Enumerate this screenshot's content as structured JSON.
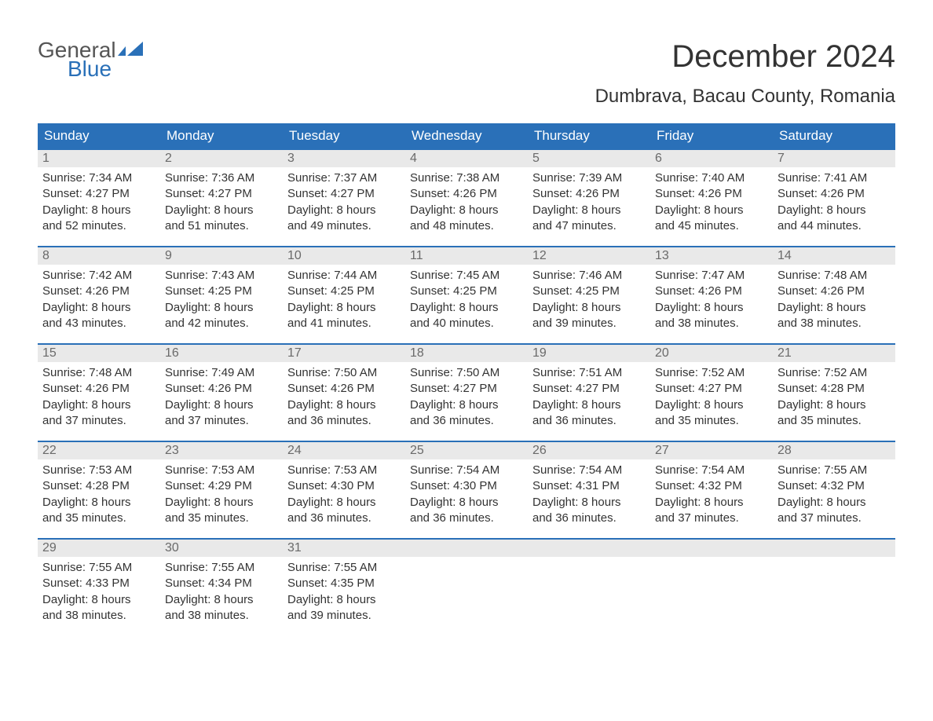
{
  "brand": {
    "text_general": "General",
    "text_blue": "Blue",
    "flag_color": "#2A70B8"
  },
  "title": {
    "month_year": "December 2024",
    "location": "Dumbrava, Bacau County, Romania"
  },
  "colors": {
    "header_bg": "#2A70B8",
    "header_text": "#ffffff",
    "daynum_bg": "#e9e9e9",
    "daynum_text": "#6a6a6a",
    "body_text": "#333333",
    "page_bg": "#ffffff",
    "row_border": "#2A70B8"
  },
  "typography": {
    "month_title_size_pt": 30,
    "location_size_pt": 18,
    "day_header_size_pt": 13,
    "body_size_pt": 11
  },
  "calendar": {
    "type": "table",
    "day_headers": [
      "Sunday",
      "Monday",
      "Tuesday",
      "Wednesday",
      "Thursday",
      "Friday",
      "Saturday"
    ],
    "weeks": [
      [
        {
          "day": "1",
          "sunrise": "Sunrise: 7:34 AM",
          "sunset": "Sunset: 4:27 PM",
          "daylight1": "Daylight: 8 hours",
          "daylight2": "and 52 minutes."
        },
        {
          "day": "2",
          "sunrise": "Sunrise: 7:36 AM",
          "sunset": "Sunset: 4:27 PM",
          "daylight1": "Daylight: 8 hours",
          "daylight2": "and 51 minutes."
        },
        {
          "day": "3",
          "sunrise": "Sunrise: 7:37 AM",
          "sunset": "Sunset: 4:27 PM",
          "daylight1": "Daylight: 8 hours",
          "daylight2": "and 49 minutes."
        },
        {
          "day": "4",
          "sunrise": "Sunrise: 7:38 AM",
          "sunset": "Sunset: 4:26 PM",
          "daylight1": "Daylight: 8 hours",
          "daylight2": "and 48 minutes."
        },
        {
          "day": "5",
          "sunrise": "Sunrise: 7:39 AM",
          "sunset": "Sunset: 4:26 PM",
          "daylight1": "Daylight: 8 hours",
          "daylight2": "and 47 minutes."
        },
        {
          "day": "6",
          "sunrise": "Sunrise: 7:40 AM",
          "sunset": "Sunset: 4:26 PM",
          "daylight1": "Daylight: 8 hours",
          "daylight2": "and 45 minutes."
        },
        {
          "day": "7",
          "sunrise": "Sunrise: 7:41 AM",
          "sunset": "Sunset: 4:26 PM",
          "daylight1": "Daylight: 8 hours",
          "daylight2": "and 44 minutes."
        }
      ],
      [
        {
          "day": "8",
          "sunrise": "Sunrise: 7:42 AM",
          "sunset": "Sunset: 4:26 PM",
          "daylight1": "Daylight: 8 hours",
          "daylight2": "and 43 minutes."
        },
        {
          "day": "9",
          "sunrise": "Sunrise: 7:43 AM",
          "sunset": "Sunset: 4:25 PM",
          "daylight1": "Daylight: 8 hours",
          "daylight2": "and 42 minutes."
        },
        {
          "day": "10",
          "sunrise": "Sunrise: 7:44 AM",
          "sunset": "Sunset: 4:25 PM",
          "daylight1": "Daylight: 8 hours",
          "daylight2": "and 41 minutes."
        },
        {
          "day": "11",
          "sunrise": "Sunrise: 7:45 AM",
          "sunset": "Sunset: 4:25 PM",
          "daylight1": "Daylight: 8 hours",
          "daylight2": "and 40 minutes."
        },
        {
          "day": "12",
          "sunrise": "Sunrise: 7:46 AM",
          "sunset": "Sunset: 4:25 PM",
          "daylight1": "Daylight: 8 hours",
          "daylight2": "and 39 minutes."
        },
        {
          "day": "13",
          "sunrise": "Sunrise: 7:47 AM",
          "sunset": "Sunset: 4:26 PM",
          "daylight1": "Daylight: 8 hours",
          "daylight2": "and 38 minutes."
        },
        {
          "day": "14",
          "sunrise": "Sunrise: 7:48 AM",
          "sunset": "Sunset: 4:26 PM",
          "daylight1": "Daylight: 8 hours",
          "daylight2": "and 38 minutes."
        }
      ],
      [
        {
          "day": "15",
          "sunrise": "Sunrise: 7:48 AM",
          "sunset": "Sunset: 4:26 PM",
          "daylight1": "Daylight: 8 hours",
          "daylight2": "and 37 minutes."
        },
        {
          "day": "16",
          "sunrise": "Sunrise: 7:49 AM",
          "sunset": "Sunset: 4:26 PM",
          "daylight1": "Daylight: 8 hours",
          "daylight2": "and 37 minutes."
        },
        {
          "day": "17",
          "sunrise": "Sunrise: 7:50 AM",
          "sunset": "Sunset: 4:26 PM",
          "daylight1": "Daylight: 8 hours",
          "daylight2": "and 36 minutes."
        },
        {
          "day": "18",
          "sunrise": "Sunrise: 7:50 AM",
          "sunset": "Sunset: 4:27 PM",
          "daylight1": "Daylight: 8 hours",
          "daylight2": "and 36 minutes."
        },
        {
          "day": "19",
          "sunrise": "Sunrise: 7:51 AM",
          "sunset": "Sunset: 4:27 PM",
          "daylight1": "Daylight: 8 hours",
          "daylight2": "and 36 minutes."
        },
        {
          "day": "20",
          "sunrise": "Sunrise: 7:52 AM",
          "sunset": "Sunset: 4:27 PM",
          "daylight1": "Daylight: 8 hours",
          "daylight2": "and 35 minutes."
        },
        {
          "day": "21",
          "sunrise": "Sunrise: 7:52 AM",
          "sunset": "Sunset: 4:28 PM",
          "daylight1": "Daylight: 8 hours",
          "daylight2": "and 35 minutes."
        }
      ],
      [
        {
          "day": "22",
          "sunrise": "Sunrise: 7:53 AM",
          "sunset": "Sunset: 4:28 PM",
          "daylight1": "Daylight: 8 hours",
          "daylight2": "and 35 minutes."
        },
        {
          "day": "23",
          "sunrise": "Sunrise: 7:53 AM",
          "sunset": "Sunset: 4:29 PM",
          "daylight1": "Daylight: 8 hours",
          "daylight2": "and 35 minutes."
        },
        {
          "day": "24",
          "sunrise": "Sunrise: 7:53 AM",
          "sunset": "Sunset: 4:30 PM",
          "daylight1": "Daylight: 8 hours",
          "daylight2": "and 36 minutes."
        },
        {
          "day": "25",
          "sunrise": "Sunrise: 7:54 AM",
          "sunset": "Sunset: 4:30 PM",
          "daylight1": "Daylight: 8 hours",
          "daylight2": "and 36 minutes."
        },
        {
          "day": "26",
          "sunrise": "Sunrise: 7:54 AM",
          "sunset": "Sunset: 4:31 PM",
          "daylight1": "Daylight: 8 hours",
          "daylight2": "and 36 minutes."
        },
        {
          "day": "27",
          "sunrise": "Sunrise: 7:54 AM",
          "sunset": "Sunset: 4:32 PM",
          "daylight1": "Daylight: 8 hours",
          "daylight2": "and 37 minutes."
        },
        {
          "day": "28",
          "sunrise": "Sunrise: 7:55 AM",
          "sunset": "Sunset: 4:32 PM",
          "daylight1": "Daylight: 8 hours",
          "daylight2": "and 37 minutes."
        }
      ],
      [
        {
          "day": "29",
          "sunrise": "Sunrise: 7:55 AM",
          "sunset": "Sunset: 4:33 PM",
          "daylight1": "Daylight: 8 hours",
          "daylight2": "and 38 minutes."
        },
        {
          "day": "30",
          "sunrise": "Sunrise: 7:55 AM",
          "sunset": "Sunset: 4:34 PM",
          "daylight1": "Daylight: 8 hours",
          "daylight2": "and 38 minutes."
        },
        {
          "day": "31",
          "sunrise": "Sunrise: 7:55 AM",
          "sunset": "Sunset: 4:35 PM",
          "daylight1": "Daylight: 8 hours",
          "daylight2": "and 39 minutes."
        },
        {
          "day": "",
          "sunrise": "",
          "sunset": "",
          "daylight1": "",
          "daylight2": ""
        },
        {
          "day": "",
          "sunrise": "",
          "sunset": "",
          "daylight1": "",
          "daylight2": ""
        },
        {
          "day": "",
          "sunrise": "",
          "sunset": "",
          "daylight1": "",
          "daylight2": ""
        },
        {
          "day": "",
          "sunrise": "",
          "sunset": "",
          "daylight1": "",
          "daylight2": ""
        }
      ]
    ]
  }
}
